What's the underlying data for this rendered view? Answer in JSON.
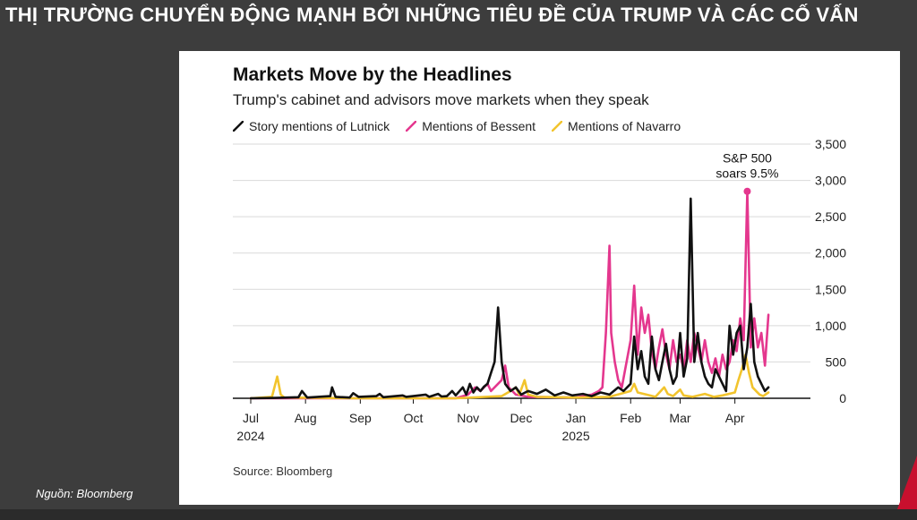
{
  "slide": {
    "title": "THỊ TRƯỜNG CHUYỂN ĐỘNG MẠNH BỞI NHỮNG TIÊU ĐỀ CỦA TRUMP VÀ CÁC CỐ VẤN",
    "source_note": "Nguồn: Bloomberg",
    "accent_color": "#c8102e"
  },
  "chart_data": {
    "type": "line",
    "title": "Markets Move by the Headlines",
    "subtitle": "Trump's cabinet and advisors move markets when they speak",
    "source": "Source: Bloomberg",
    "legend_position": "top-left",
    "grid": true,
    "y_axis_side": "right",
    "ylim": [
      0,
      3500
    ],
    "y_ticks": [
      0,
      500,
      1000,
      1500,
      2000,
      2500,
      3000,
      3500
    ],
    "y_tick_labels": [
      "0",
      "500",
      "1,000",
      "1,500",
      "2,000",
      "2,500",
      "3,000",
      "3,500"
    ],
    "xlim": [
      "2024-07-01",
      "2025-04-25"
    ],
    "x_ticks": [
      {
        "date": "2024-07-01",
        "label": "Jul",
        "year": "2024"
      },
      {
        "date": "2024-08-01",
        "label": "Aug",
        "year": ""
      },
      {
        "date": "2024-09-01",
        "label": "Sep",
        "year": ""
      },
      {
        "date": "2024-10-01",
        "label": "Oct",
        "year": ""
      },
      {
        "date": "2024-11-01",
        "label": "Nov",
        "year": ""
      },
      {
        "date": "2024-12-01",
        "label": "Dec",
        "year": ""
      },
      {
        "date": "2025-01-01",
        "label": "Jan",
        "year": "2025"
      },
      {
        "date": "2025-02-01",
        "label": "Feb",
        "year": ""
      },
      {
        "date": "2025-03-01",
        "label": "Mar",
        "year": ""
      },
      {
        "date": "2025-04-01",
        "label": "Apr",
        "year": ""
      }
    ],
    "series": [
      {
        "name": "Story mentions of Lutnick",
        "color": "#111111",
        "points": [
          [
            "2024-07-01",
            0
          ],
          [
            "2024-07-15",
            5
          ],
          [
            "2024-07-28",
            15
          ],
          [
            "2024-07-30",
            100
          ],
          [
            "2024-08-02",
            10
          ],
          [
            "2024-08-15",
            30
          ],
          [
            "2024-08-16",
            150
          ],
          [
            "2024-08-18",
            20
          ],
          [
            "2024-08-26",
            10
          ],
          [
            "2024-08-28",
            70
          ],
          [
            "2024-08-31",
            20
          ],
          [
            "2024-09-10",
            30
          ],
          [
            "2024-09-12",
            60
          ],
          [
            "2024-09-14",
            15
          ],
          [
            "2024-09-25",
            40
          ],
          [
            "2024-09-27",
            20
          ],
          [
            "2024-10-08",
            50
          ],
          [
            "2024-10-10",
            20
          ],
          [
            "2024-10-15",
            60
          ],
          [
            "2024-10-17",
            25
          ],
          [
            "2024-10-20",
            30
          ],
          [
            "2024-10-23",
            100
          ],
          [
            "2024-10-25",
            40
          ],
          [
            "2024-10-29",
            150
          ],
          [
            "2024-10-31",
            50
          ],
          [
            "2024-11-02",
            200
          ],
          [
            "2024-11-04",
            80
          ],
          [
            "2024-11-06",
            150
          ],
          [
            "2024-11-08",
            100
          ],
          [
            "2024-11-10",
            160
          ],
          [
            "2024-11-12",
            200
          ],
          [
            "2024-11-14",
            350
          ],
          [
            "2024-11-16",
            500
          ],
          [
            "2024-11-18",
            1250
          ],
          [
            "2024-11-20",
            500
          ],
          [
            "2024-11-22",
            200
          ],
          [
            "2024-11-25",
            100
          ],
          [
            "2024-11-28",
            150
          ],
          [
            "2024-12-01",
            50
          ],
          [
            "2024-12-05",
            100
          ],
          [
            "2024-12-10",
            60
          ],
          [
            "2024-12-15",
            120
          ],
          [
            "2024-12-20",
            40
          ],
          [
            "2024-12-25",
            80
          ],
          [
            "2024-12-30",
            40
          ],
          [
            "2025-01-05",
            60
          ],
          [
            "2025-01-10",
            30
          ],
          [
            "2025-01-15",
            80
          ],
          [
            "2025-01-20",
            50
          ],
          [
            "2025-01-25",
            150
          ],
          [
            "2025-01-28",
            100
          ],
          [
            "2025-02-01",
            200
          ],
          [
            "2025-02-03",
            850
          ],
          [
            "2025-02-05",
            400
          ],
          [
            "2025-02-07",
            650
          ],
          [
            "2025-02-09",
            300
          ],
          [
            "2025-02-11",
            200
          ],
          [
            "2025-02-13",
            850
          ],
          [
            "2025-02-15",
            400
          ],
          [
            "2025-02-17",
            250
          ],
          [
            "2025-02-19",
            500
          ],
          [
            "2025-02-21",
            750
          ],
          [
            "2025-02-23",
            400
          ],
          [
            "2025-02-25",
            200
          ],
          [
            "2025-02-27",
            300
          ],
          [
            "2025-03-01",
            900
          ],
          [
            "2025-03-03",
            300
          ],
          [
            "2025-03-05",
            550
          ],
          [
            "2025-03-07",
            2750
          ],
          [
            "2025-03-09",
            500
          ],
          [
            "2025-03-11",
            900
          ],
          [
            "2025-03-13",
            500
          ],
          [
            "2025-03-15",
            300
          ],
          [
            "2025-03-17",
            200
          ],
          [
            "2025-03-19",
            150
          ],
          [
            "2025-03-21",
            400
          ],
          [
            "2025-03-23",
            300
          ],
          [
            "2025-03-25",
            200
          ],
          [
            "2025-03-27",
            100
          ],
          [
            "2025-03-29",
            1000
          ],
          [
            "2025-03-31",
            600
          ],
          [
            "2025-04-02",
            900
          ],
          [
            "2025-04-04",
            1000
          ],
          [
            "2025-04-06",
            400
          ],
          [
            "2025-04-08",
            700
          ],
          [
            "2025-04-10",
            1300
          ],
          [
            "2025-04-12",
            500
          ],
          [
            "2025-04-14",
            300
          ],
          [
            "2025-04-16",
            200
          ],
          [
            "2025-04-18",
            100
          ],
          [
            "2025-04-20",
            150
          ]
        ]
      },
      {
        "name": "Mentions of Bessent",
        "color": "#e4378e",
        "points": [
          [
            "2024-07-01",
            0
          ],
          [
            "2024-10-25",
            0
          ],
          [
            "2024-11-01",
            50
          ],
          [
            "2024-11-05",
            150
          ],
          [
            "2024-11-08",
            100
          ],
          [
            "2024-11-12",
            200
          ],
          [
            "2024-11-14",
            100
          ],
          [
            "2024-11-20",
            250
          ],
          [
            "2024-11-22",
            450
          ],
          [
            "2024-11-24",
            150
          ],
          [
            "2024-11-28",
            50
          ],
          [
            "2024-12-05",
            20
          ],
          [
            "2025-01-01",
            10
          ],
          [
            "2025-01-10",
            50
          ],
          [
            "2025-01-14",
            100
          ],
          [
            "2025-01-16",
            150
          ],
          [
            "2025-01-18",
            900
          ],
          [
            "2025-01-20",
            2100
          ],
          [
            "2025-01-21",
            900
          ],
          [
            "2025-01-23",
            500
          ],
          [
            "2025-01-25",
            250
          ],
          [
            "2025-01-27",
            150
          ],
          [
            "2025-02-01",
            800
          ],
          [
            "2025-02-03",
            1550
          ],
          [
            "2025-02-05",
            600
          ],
          [
            "2025-02-07",
            1250
          ],
          [
            "2025-02-09",
            900
          ],
          [
            "2025-02-11",
            1150
          ],
          [
            "2025-02-13",
            650
          ],
          [
            "2025-02-15",
            400
          ],
          [
            "2025-02-17",
            700
          ],
          [
            "2025-02-19",
            950
          ],
          [
            "2025-02-21",
            600
          ],
          [
            "2025-02-23",
            400
          ],
          [
            "2025-02-25",
            800
          ],
          [
            "2025-02-27",
            500
          ],
          [
            "2025-03-01",
            600
          ],
          [
            "2025-03-03",
            400
          ],
          [
            "2025-03-05",
            800
          ],
          [
            "2025-03-07",
            500
          ],
          [
            "2025-03-09",
            900
          ],
          [
            "2025-03-11",
            700
          ],
          [
            "2025-03-13",
            500
          ],
          [
            "2025-03-15",
            800
          ],
          [
            "2025-03-17",
            500
          ],
          [
            "2025-03-19",
            350
          ],
          [
            "2025-03-21",
            550
          ],
          [
            "2025-03-23",
            300
          ],
          [
            "2025-03-25",
            600
          ],
          [
            "2025-03-27",
            400
          ],
          [
            "2025-03-29",
            500
          ],
          [
            "2025-03-31",
            800
          ],
          [
            "2025-04-02",
            650
          ],
          [
            "2025-04-04",
            1100
          ],
          [
            "2025-04-06",
            800
          ],
          [
            "2025-04-08",
            2850
          ],
          [
            "2025-04-10",
            700
          ],
          [
            "2025-04-12",
            1100
          ],
          [
            "2025-04-14",
            700
          ],
          [
            "2025-04-16",
            900
          ],
          [
            "2025-04-18",
            450
          ],
          [
            "2025-04-20",
            1150
          ]
        ]
      },
      {
        "name": "Mentions of Navarro",
        "color": "#f2c42d",
        "points": [
          [
            "2024-07-01",
            0
          ],
          [
            "2024-07-13",
            20
          ],
          [
            "2024-07-16",
            300
          ],
          [
            "2024-07-18",
            50
          ],
          [
            "2024-07-20",
            10
          ],
          [
            "2024-08-30",
            0
          ],
          [
            "2024-10-25",
            0
          ],
          [
            "2024-11-20",
            30
          ],
          [
            "2024-11-25",
            100
          ],
          [
            "2024-11-28",
            150
          ],
          [
            "2024-11-30",
            50
          ],
          [
            "2024-12-03",
            250
          ],
          [
            "2024-12-05",
            50
          ],
          [
            "2024-12-10",
            20
          ],
          [
            "2025-01-01",
            10
          ],
          [
            "2025-01-20",
            20
          ],
          [
            "2025-02-01",
            100
          ],
          [
            "2025-02-03",
            200
          ],
          [
            "2025-02-05",
            80
          ],
          [
            "2025-02-10",
            50
          ],
          [
            "2025-02-15",
            20
          ],
          [
            "2025-02-20",
            150
          ],
          [
            "2025-02-22",
            60
          ],
          [
            "2025-02-25",
            30
          ],
          [
            "2025-03-01",
            120
          ],
          [
            "2025-03-03",
            40
          ],
          [
            "2025-03-08",
            20
          ],
          [
            "2025-03-15",
            60
          ],
          [
            "2025-03-20",
            20
          ],
          [
            "2025-03-25",
            40
          ],
          [
            "2025-04-01",
            80
          ],
          [
            "2025-04-03",
            250
          ],
          [
            "2025-04-05",
            400
          ],
          [
            "2025-04-07",
            600
          ],
          [
            "2025-04-09",
            350
          ],
          [
            "2025-04-11",
            150
          ],
          [
            "2025-04-13",
            100
          ],
          [
            "2025-04-15",
            50
          ],
          [
            "2025-04-17",
            30
          ],
          [
            "2025-04-20",
            80
          ]
        ]
      }
    ],
    "annotations": [
      {
        "text_lines": [
          "S&P 500",
          "soars 9.5%"
        ],
        "date": "2025-04-08",
        "value": 2850,
        "color": "#e4378e"
      }
    ]
  }
}
